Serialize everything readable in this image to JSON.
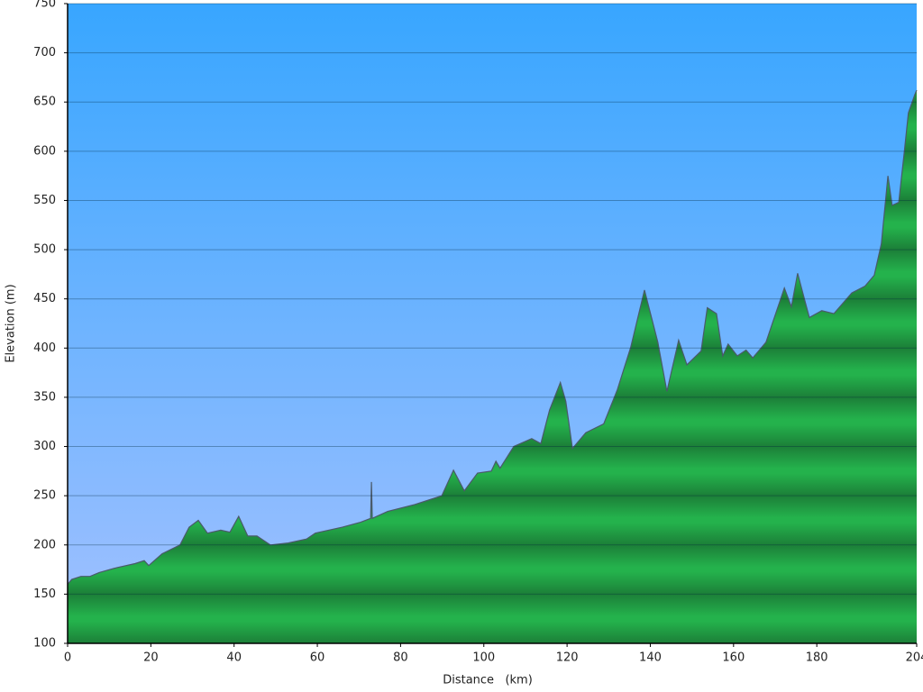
{
  "chart_data": {
    "type": "area",
    "x_label": "Distance   (km)",
    "y_label": "Elevation (m)",
    "xlim": [
      0,
      204
    ],
    "ylim": [
      100,
      750
    ],
    "xticks": [
      0,
      20,
      40,
      60,
      80,
      100,
      120,
      140,
      160,
      180,
      204
    ],
    "yticks": [
      100,
      150,
      200,
      250,
      300,
      350,
      400,
      450,
      500,
      550,
      600,
      650,
      700,
      750
    ],
    "grid": true,
    "color": "#22b04a",
    "x": [
      0,
      1,
      3.2,
      5.4,
      7.6,
      11.9,
      16.2,
      18.4,
      19.5,
      22.7,
      27,
      29.2,
      31.4,
      33.6,
      36.8,
      39,
      41.1,
      43.3,
      45.5,
      48.7,
      53,
      57.4,
      59.5,
      66,
      70.4,
      72.8,
      73,
      73.2,
      76.9,
      83.4,
      89.9,
      92.7,
      95.3,
      98.5,
      101.8,
      102.9,
      103.9,
      107.2,
      111.5,
      113.7,
      115.8,
      118.4,
      119.7,
      121.3,
      124.5,
      128.8,
      132.1,
      135.3,
      138.6,
      141.8,
      144,
      146.8,
      148.8,
      152.2,
      153.7,
      155.9,
      157.4,
      158.7,
      160.9,
      163,
      164.6,
      167.8,
      172.2,
      173.9,
      175.4,
      178.2,
      181.2,
      184.1,
      188.4,
      191.6,
      193.8,
      195.5,
      197.1,
      198.1,
      199.7,
      201,
      202,
      203.5,
      204
    ],
    "values": [
      160,
      165,
      168,
      168,
      172,
      177,
      181,
      184,
      179,
      191,
      200,
      218,
      225,
      212,
      215,
      213,
      229,
      209,
      209,
      200,
      202,
      206,
      212,
      218,
      223,
      227,
      264,
      227,
      234,
      241,
      250,
      276,
      255,
      273,
      275,
      285,
      278,
      300,
      308,
      303,
      337,
      365,
      346,
      298,
      314,
      323,
      358,
      401,
      459,
      406,
      356,
      408,
      383,
      397,
      441,
      435,
      392,
      404,
      392,
      398,
      390,
      406,
      461,
      442,
      476,
      431,
      438,
      435,
      456,
      463,
      474,
      506,
      575,
      545,
      548,
      598,
      639,
      657,
      662
    ]
  }
}
